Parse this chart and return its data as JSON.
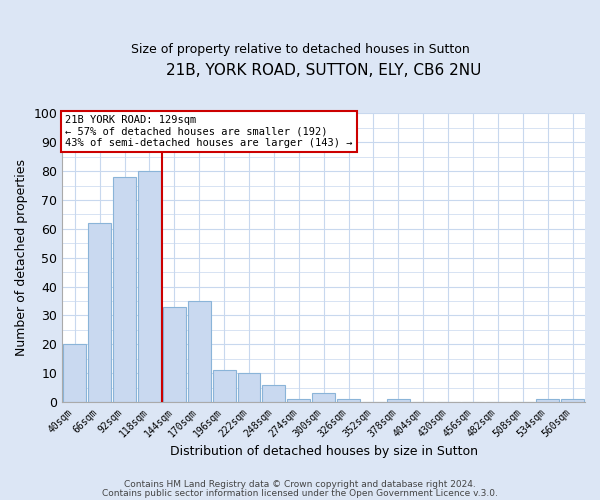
{
  "title": "21B, YORK ROAD, SUTTON, ELY, CB6 2NU",
  "subtitle": "Size of property relative to detached houses in Sutton",
  "xlabel": "Distribution of detached houses by size in Sutton",
  "ylabel": "Number of detached properties",
  "bar_labels": [
    "40sqm",
    "66sqm",
    "92sqm",
    "118sqm",
    "144sqm",
    "170sqm",
    "196sqm",
    "222sqm",
    "248sqm",
    "274sqm",
    "300sqm",
    "326sqm",
    "352sqm",
    "378sqm",
    "404sqm",
    "430sqm",
    "456sqm",
    "482sqm",
    "508sqm",
    "534sqm",
    "560sqm"
  ],
  "bar_values": [
    20,
    62,
    78,
    80,
    33,
    35,
    11,
    10,
    6,
    1,
    3,
    1,
    0,
    1,
    0,
    0,
    0,
    0,
    0,
    1,
    1
  ],
  "bar_color": "#c9d9f0",
  "bar_edge_color": "#8ab4d8",
  "ylim": [
    0,
    100
  ],
  "yticks": [
    0,
    10,
    20,
    30,
    40,
    50,
    60,
    70,
    80,
    90,
    100
  ],
  "vline_x": 3.5,
  "vline_color": "#cc0000",
  "annotation_title": "21B YORK ROAD: 129sqm",
  "annotation_line1": "← 57% of detached houses are smaller (192)",
  "annotation_line2": "43% of semi-detached houses are larger (143) →",
  "annotation_box_facecolor": "#ffffff",
  "annotation_box_edgecolor": "#cc0000",
  "fig_bg_color": "#dce6f5",
  "plot_bg_color": "#ffffff",
  "grid_color": "#c8d8ee",
  "footer1": "Contains HM Land Registry data © Crown copyright and database right 2024.",
  "footer2": "Contains public sector information licensed under the Open Government Licence v.3.0."
}
